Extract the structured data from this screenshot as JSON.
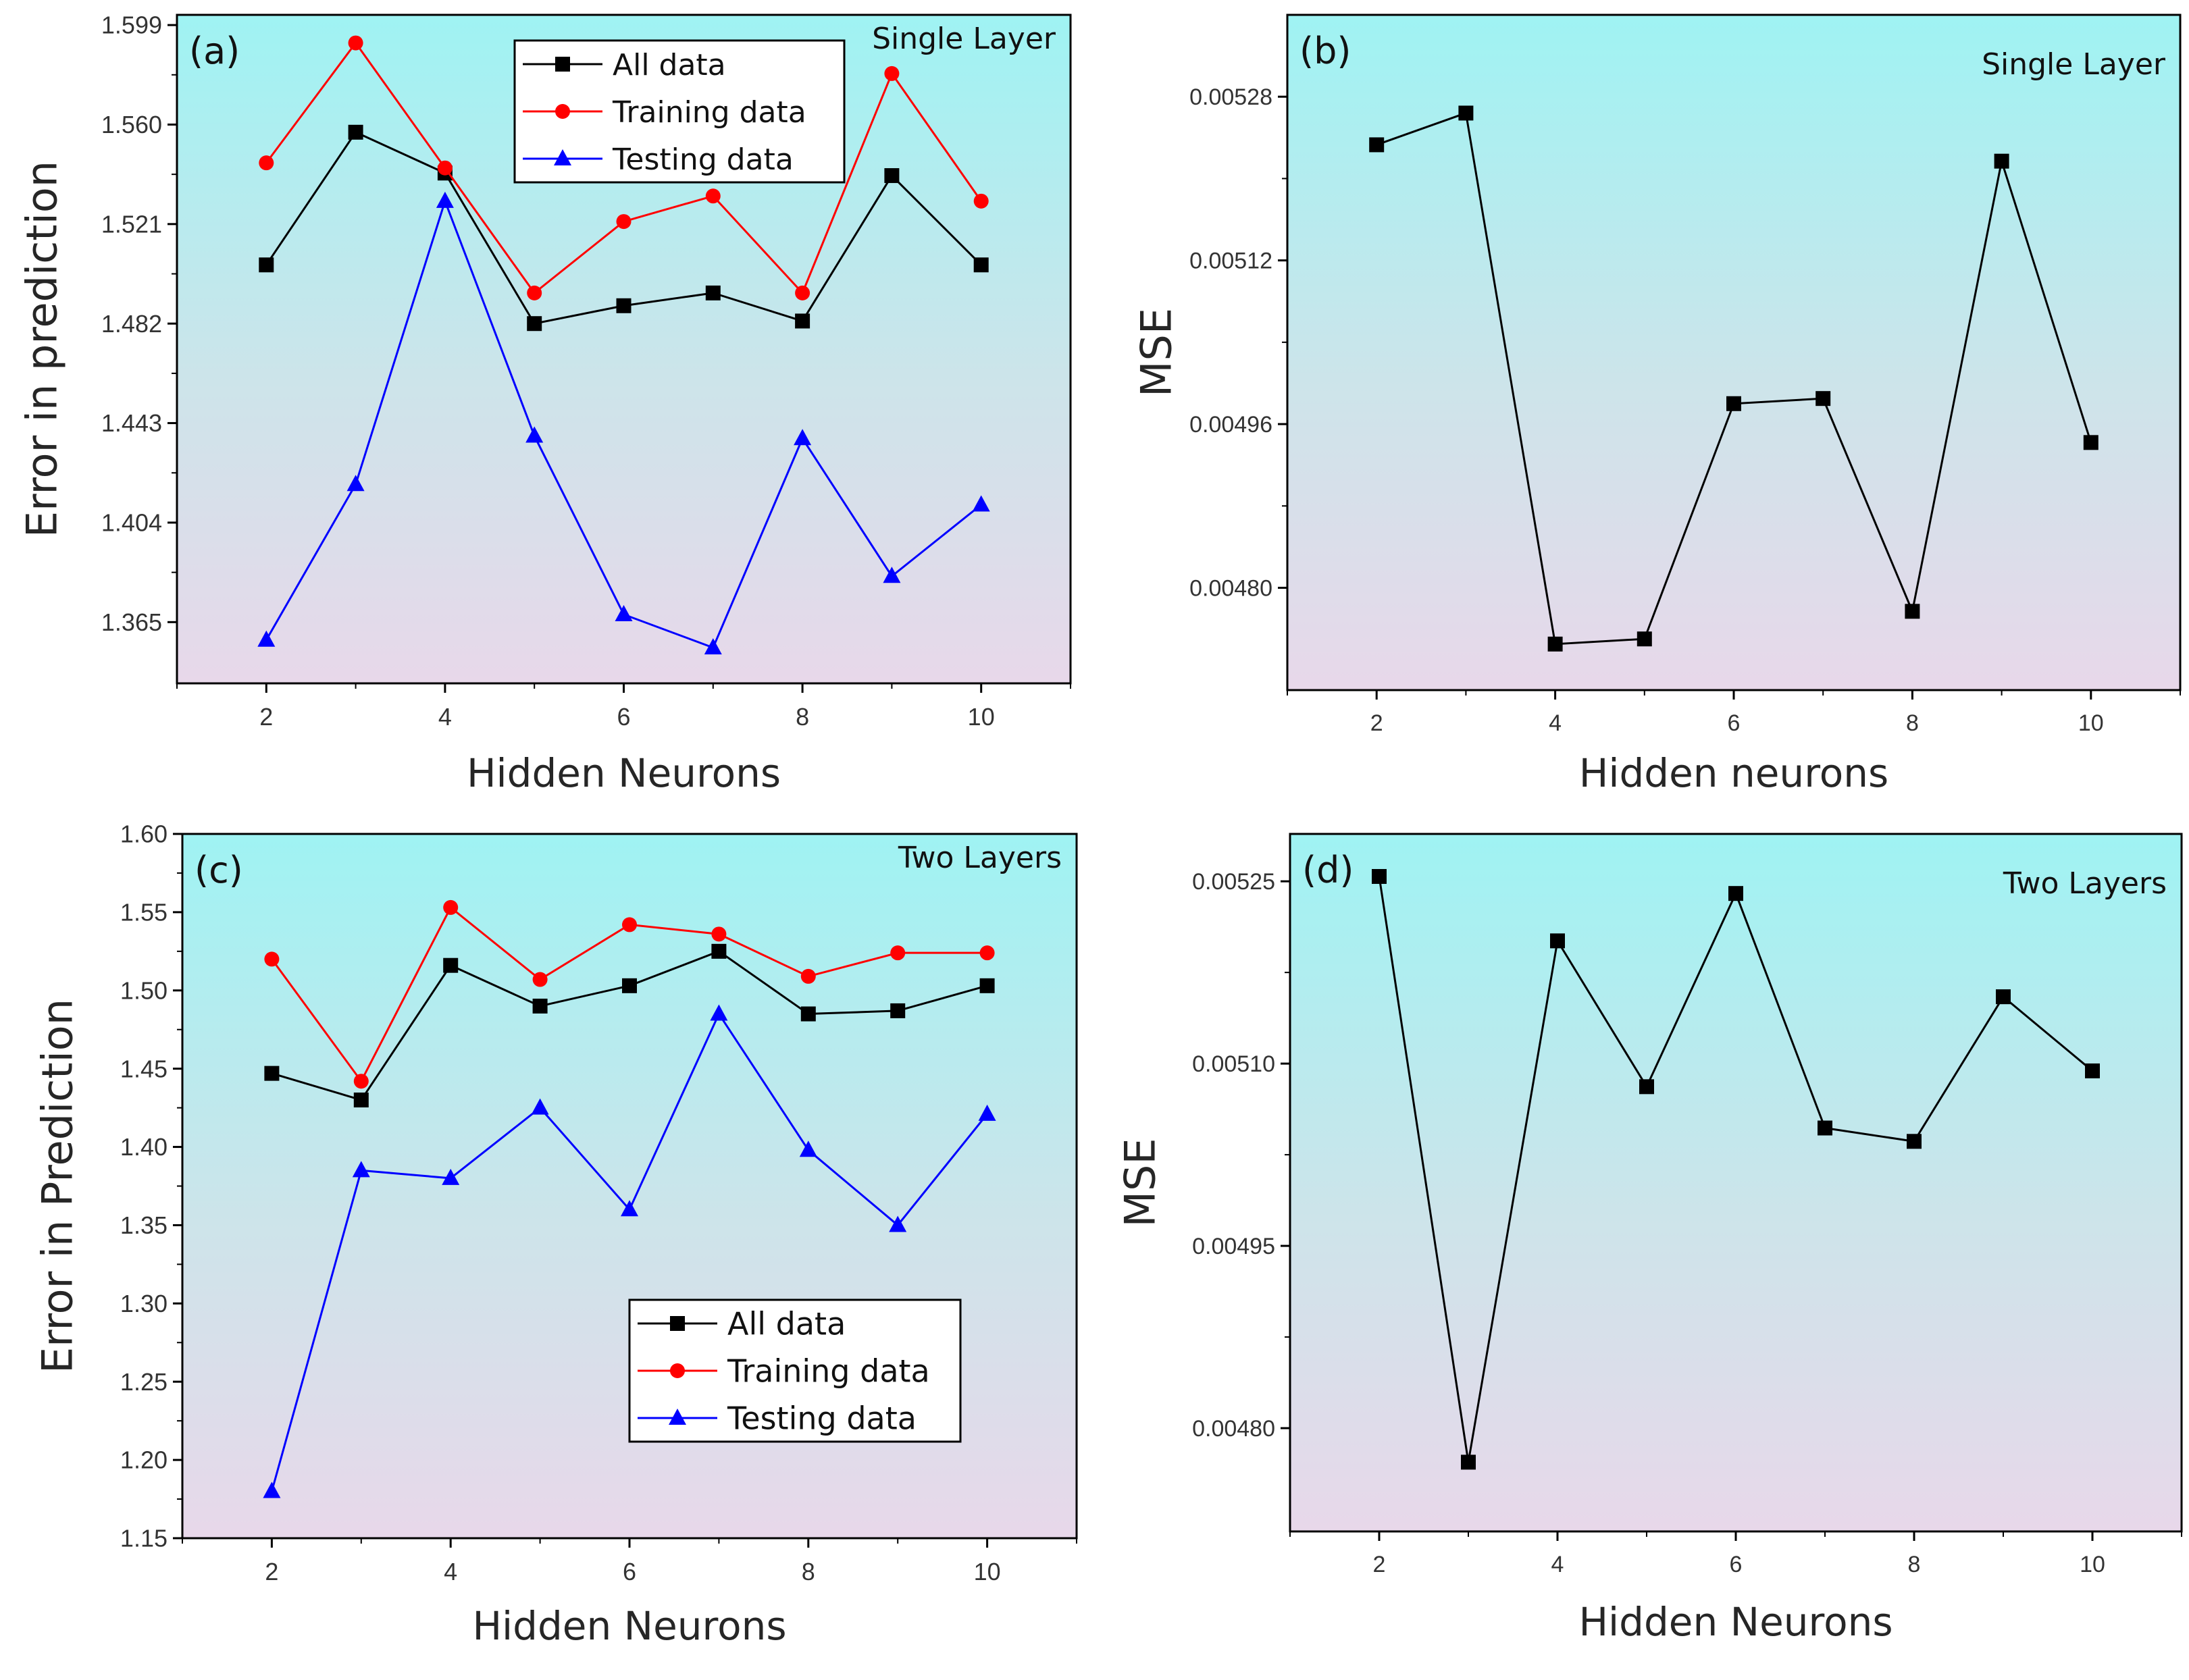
{
  "chart_data": [
    {
      "id": "a",
      "type": "line",
      "panel_label": "(a)",
      "title": "Single Layer",
      "xlabel": "Hidden Neurons",
      "ylabel": "Error in prediction",
      "x": [
        2,
        3,
        4,
        5,
        6,
        7,
        8,
        9,
        10
      ],
      "xticks": [
        2,
        4,
        6,
        8,
        10
      ],
      "xticklabels": [
        "2",
        "4",
        "6",
        "8",
        "10"
      ],
      "xlim": [
        1,
        11
      ],
      "ylim": [
        1.341,
        1.603
      ],
      "yticks": [
        1.365,
        1.404,
        1.443,
        1.482,
        1.521,
        1.56,
        1.599
      ],
      "yticklabels": [
        "1.365",
        "1.404",
        "1.443",
        "1.482",
        "1.521",
        "1.560",
        "1.599"
      ],
      "legend": {
        "position": "top-center",
        "entries": [
          "All data",
          "Training data",
          "Testing data"
        ]
      },
      "series": [
        {
          "name": "All data",
          "color": "#000000",
          "marker": "square",
          "values": [
            1.505,
            1.557,
            1.541,
            1.482,
            1.489,
            1.494,
            1.483,
            1.54,
            1.505
          ]
        },
        {
          "name": "Training data",
          "color": "#ff0000",
          "marker": "circle",
          "values": [
            1.545,
            1.592,
            1.543,
            1.494,
            1.522,
            1.532,
            1.494,
            1.58,
            1.53
          ]
        },
        {
          "name": "Testing data",
          "color": "#0000ff",
          "marker": "triangle",
          "values": [
            1.358,
            1.419,
            1.53,
            1.438,
            1.368,
            1.355,
            1.437,
            1.383,
            1.411
          ]
        }
      ]
    },
    {
      "id": "b",
      "type": "line",
      "panel_label": "(b)",
      "title": "Single Layer",
      "xlabel": "Hidden neurons",
      "ylabel": "MSE",
      "x": [
        2,
        3,
        4,
        5,
        6,
        7,
        8,
        9,
        10
      ],
      "xticks": [
        2,
        4,
        6,
        8,
        10
      ],
      "xticklabels": [
        "2",
        "4",
        "6",
        "8",
        "10"
      ],
      "xlim": [
        1,
        11
      ],
      "ylim": [
        0.0047,
        0.00536
      ],
      "yticks": [
        0.0048,
        0.00496,
        0.00512,
        0.00528
      ],
      "yticklabels": [
        "0.00480",
        "0.00496",
        "0.00512",
        "0.00528"
      ],
      "series": [
        {
          "name": "MSE",
          "color": "#000000",
          "marker": "square",
          "values": [
            0.005233,
            0.005264,
            0.004745,
            0.00475,
            0.00498,
            0.004985,
            0.004777,
            0.005217,
            0.004942
          ]
        }
      ]
    },
    {
      "id": "c",
      "type": "line",
      "panel_label": "(c)",
      "title": "Two Layers",
      "xlabel": "Hidden Neurons",
      "ylabel": "Error in Prediction",
      "x": [
        2,
        3,
        4,
        5,
        6,
        7,
        8,
        9,
        10
      ],
      "xticks": [
        2,
        4,
        6,
        8,
        10
      ],
      "xticklabels": [
        "2",
        "4",
        "6",
        "8",
        "10"
      ],
      "xlim": [
        1,
        11
      ],
      "ylim": [
        1.15,
        1.6
      ],
      "yticks": [
        1.15,
        1.2,
        1.25,
        1.3,
        1.35,
        1.4,
        1.45,
        1.5,
        1.55,
        1.6
      ],
      "yticklabels": [
        "1.15",
        "1.20",
        "1.25",
        "1.30",
        "1.35",
        "1.40",
        "1.45",
        "1.50",
        "1.55",
        "1.60"
      ],
      "legend": {
        "position": "bottom-center",
        "entries": [
          "All data",
          "Training data",
          "Testing data"
        ]
      },
      "series": [
        {
          "name": "All data",
          "color": "#000000",
          "marker": "square",
          "values": [
            1.447,
            1.43,
            1.516,
            1.49,
            1.503,
            1.525,
            1.485,
            1.487,
            1.503
          ]
        },
        {
          "name": "Training data",
          "color": "#ff0000",
          "marker": "circle",
          "values": [
            1.52,
            1.442,
            1.553,
            1.507,
            1.542,
            1.536,
            1.509,
            1.524,
            1.524
          ]
        },
        {
          "name": "Testing data",
          "color": "#0000ff",
          "marker": "triangle",
          "values": [
            1.18,
            1.385,
            1.38,
            1.425,
            1.36,
            1.485,
            1.398,
            1.35,
            1.421
          ]
        }
      ]
    },
    {
      "id": "d",
      "type": "line",
      "panel_label": "(d)",
      "title": "Two Layers",
      "xlabel": "Hidden Neurons",
      "ylabel": "MSE",
      "x": [
        2,
        3,
        4,
        5,
        6,
        7,
        8,
        9,
        10
      ],
      "xticks": [
        2,
        4,
        6,
        8,
        10
      ],
      "xticklabels": [
        "2",
        "4",
        "6",
        "8",
        "10"
      ],
      "xlim": [
        1,
        11
      ],
      "ylim": [
        0.004715,
        0.005289
      ],
      "yticks": [
        0.0048,
        0.00495,
        0.0051,
        0.00525
      ],
      "yticklabels": [
        "0.00480",
        "0.00495",
        "0.00510",
        "0.00525"
      ],
      "series": [
        {
          "name": "MSE",
          "color": "#000000",
          "marker": "square",
          "values": [
            0.005254,
            0.004772,
            0.005201,
            0.005081,
            0.00524,
            0.005047,
            0.005036,
            0.005155,
            0.005094
          ]
        }
      ]
    }
  ]
}
